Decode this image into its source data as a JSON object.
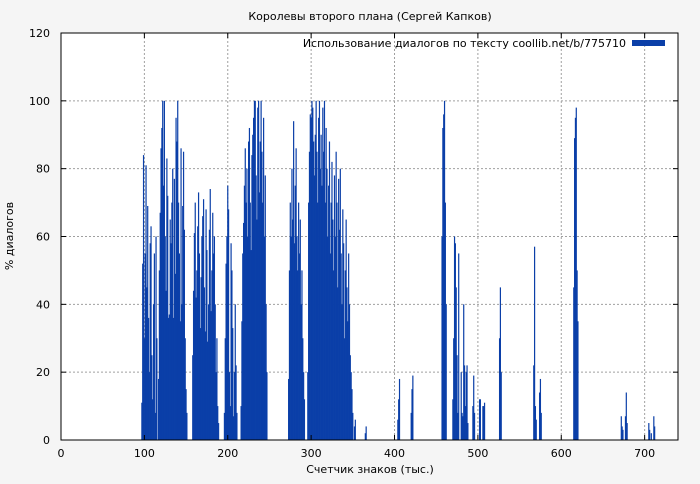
{
  "chart_data": {
    "type": "bar",
    "title": "Королевы второго плана (Сергей Капков)",
    "xlabel": "Счетчик знаков (тыс.)",
    "ylabel": "% диалогов",
    "xlim": [
      0,
      740
    ],
    "ylim": [
      0,
      120
    ],
    "xticks": [
      0,
      100,
      200,
      300,
      400,
      500,
      600,
      700
    ],
    "yticks": [
      0,
      20,
      40,
      60,
      80,
      100,
      120
    ],
    "grid": true,
    "legend_position": "top-right",
    "bar_color": "#0b3fa8",
    "series": [
      {
        "name": "Использование диалогов по тексту coollib.net/b/775710",
        "points": [
          [
            97,
            11
          ],
          [
            98,
            52
          ],
          [
            99,
            84
          ],
          [
            100,
            30
          ],
          [
            101,
            55
          ],
          [
            102,
            81
          ],
          [
            103,
            45
          ],
          [
            104,
            69
          ],
          [
            105,
            36
          ],
          [
            106,
            20
          ],
          [
            107,
            58
          ],
          [
            108,
            63
          ],
          [
            109,
            25
          ],
          [
            110,
            12
          ],
          [
            111,
            40
          ],
          [
            112,
            55
          ],
          [
            113,
            8
          ],
          [
            114,
            60
          ],
          [
            115,
            30
          ],
          [
            117,
            18
          ],
          [
            118,
            50
          ],
          [
            119,
            67
          ],
          [
            120,
            86
          ],
          [
            121,
            92
          ],
          [
            122,
            100
          ],
          [
            123,
            75
          ],
          [
            124,
            100
          ],
          [
            125,
            60
          ],
          [
            126,
            44
          ],
          [
            127,
            83
          ],
          [
            128,
            72
          ],
          [
            129,
            36
          ],
          [
            130,
            37
          ],
          [
            131,
            65
          ],
          [
            132,
            58
          ],
          [
            133,
            70
          ],
          [
            134,
            80
          ],
          [
            135,
            36
          ],
          [
            136,
            77
          ],
          [
            137,
            49
          ],
          [
            138,
            95
          ],
          [
            139,
            88
          ],
          [
            140,
            100
          ],
          [
            141,
            70
          ],
          [
            142,
            55
          ],
          [
            143,
            35
          ],
          [
            144,
            86
          ],
          [
            145,
            40
          ],
          [
            146,
            69
          ],
          [
            147,
            85
          ],
          [
            148,
            62
          ],
          [
            149,
            30
          ],
          [
            150,
            15
          ],
          [
            151,
            8
          ],
          [
            158,
            25
          ],
          [
            159,
            44
          ],
          [
            160,
            61
          ],
          [
            161,
            70
          ],
          [
            162,
            42
          ],
          [
            163,
            50
          ],
          [
            164,
            63
          ],
          [
            165,
            73
          ],
          [
            166,
            55
          ],
          [
            167,
            33
          ],
          [
            168,
            48
          ],
          [
            169,
            60
          ],
          [
            170,
            66
          ],
          [
            171,
            71
          ],
          [
            172,
            45
          ],
          [
            173,
            32
          ],
          [
            174,
            68
          ],
          [
            175,
            56
          ],
          [
            176,
            29
          ],
          [
            177,
            40
          ],
          [
            178,
            62
          ],
          [
            179,
            74
          ],
          [
            180,
            38
          ],
          [
            181,
            50
          ],
          [
            182,
            67
          ],
          [
            183,
            55
          ],
          [
            184,
            60
          ],
          [
            185,
            40
          ],
          [
            186,
            20
          ],
          [
            187,
            30
          ],
          [
            188,
            10
          ],
          [
            189,
            5
          ],
          [
            196,
            8
          ],
          [
            197,
            30
          ],
          [
            198,
            52
          ],
          [
            199,
            60
          ],
          [
            200,
            75
          ],
          [
            201,
            68
          ],
          [
            202,
            20
          ],
          [
            203,
            10
          ],
          [
            204,
            58
          ],
          [
            205,
            50
          ],
          [
            206,
            33
          ],
          [
            207,
            7
          ],
          [
            208,
            20
          ],
          [
            209,
            40
          ],
          [
            210,
            22
          ],
          [
            211,
            8
          ],
          [
            216,
            10
          ],
          [
            217,
            35
          ],
          [
            218,
            55
          ],
          [
            219,
            64
          ],
          [
            220,
            75
          ],
          [
            221,
            86
          ],
          [
            222,
            70
          ],
          [
            223,
            80
          ],
          [
            224,
            60
          ],
          [
            225,
            88
          ],
          [
            226,
            92
          ],
          [
            227,
            70
          ],
          [
            228,
            56
          ],
          [
            229,
            84
          ],
          [
            230,
            90
          ],
          [
            231,
            95
          ],
          [
            232,
            100
          ],
          [
            233,
            100
          ],
          [
            234,
            78
          ],
          [
            235,
            65
          ],
          [
            236,
            98
          ],
          [
            237,
            100
          ],
          [
            238,
            73
          ],
          [
            239,
            88
          ],
          [
            240,
            100
          ],
          [
            241,
            85
          ],
          [
            242,
            70
          ],
          [
            243,
            95
          ],
          [
            244,
            60
          ],
          [
            245,
            78
          ],
          [
            246,
            40
          ],
          [
            247,
            20
          ],
          [
            273,
            18
          ],
          [
            274,
            50
          ],
          [
            275,
            70
          ],
          [
            276,
            60
          ],
          [
            277,
            80
          ],
          [
            278,
            65
          ],
          [
            279,
            94
          ],
          [
            280,
            58
          ],
          [
            281,
            75
          ],
          [
            282,
            86
          ],
          [
            283,
            60
          ],
          [
            284,
            50
          ],
          [
            285,
            70
          ],
          [
            286,
            55
          ],
          [
            287,
            65
          ],
          [
            288,
            40
          ],
          [
            289,
            50
          ],
          [
            290,
            30
          ],
          [
            291,
            20
          ],
          [
            292,
            12
          ],
          [
            296,
            20
          ],
          [
            297,
            70
          ],
          [
            298,
            85
          ],
          [
            299,
            96
          ],
          [
            300,
            95
          ],
          [
            301,
            100
          ],
          [
            302,
            98
          ],
          [
            303,
            88
          ],
          [
            304,
            78
          ],
          [
            305,
            90
          ],
          [
            306,
            100
          ],
          [
            307,
            85
          ],
          [
            308,
            70
          ],
          [
            309,
            95
          ],
          [
            310,
            100
          ],
          [
            311,
            80
          ],
          [
            312,
            90
          ],
          [
            313,
            75
          ],
          [
            314,
            98
          ],
          [
            315,
            85
          ],
          [
            316,
            100
          ],
          [
            317,
            70
          ],
          [
            318,
            92
          ],
          [
            319,
            80
          ],
          [
            320,
            60
          ],
          [
            321,
            75
          ],
          [
            322,
            88
          ],
          [
            323,
            55
          ],
          [
            324,
            70
          ],
          [
            325,
            82
          ],
          [
            326,
            65
          ],
          [
            327,
            50
          ],
          [
            328,
            78
          ],
          [
            329,
            60
          ],
          [
            330,
            85
          ],
          [
            331,
            70
          ],
          [
            332,
            45
          ],
          [
            333,
            77
          ],
          [
            334,
            62
          ],
          [
            335,
            80
          ],
          [
            336,
            55
          ],
          [
            337,
            40
          ],
          [
            338,
            68
          ],
          [
            339,
            58
          ],
          [
            340,
            30
          ],
          [
            341,
            50
          ],
          [
            342,
            65
          ],
          [
            343,
            45
          ],
          [
            344,
            35
          ],
          [
            345,
            55
          ],
          [
            346,
            40
          ],
          [
            347,
            25
          ],
          [
            348,
            20
          ],
          [
            349,
            15
          ],
          [
            350,
            8
          ],
          [
            352,
            4
          ],
          [
            353,
            6
          ],
          [
            365,
            2
          ],
          [
            366,
            4
          ],
          [
            404,
            6
          ],
          [
            405,
            12
          ],
          [
            406,
            18
          ],
          [
            420,
            8
          ],
          [
            421,
            15
          ],
          [
            422,
            19
          ],
          [
            457,
            60
          ],
          [
            458,
            92
          ],
          [
            459,
            96
          ],
          [
            460,
            100
          ],
          [
            461,
            70
          ],
          [
            462,
            40
          ],
          [
            470,
            12
          ],
          [
            471,
            30
          ],
          [
            472,
            60
          ],
          [
            473,
            58
          ],
          [
            474,
            45
          ],
          [
            475,
            25
          ],
          [
            476,
            8
          ],
          [
            477,
            55
          ],
          [
            480,
            20
          ],
          [
            481,
            8
          ],
          [
            482,
            7
          ],
          [
            483,
            40
          ],
          [
            484,
            22
          ],
          [
            485,
            10
          ],
          [
            486,
            20
          ],
          [
            487,
            22
          ],
          [
            488,
            5
          ],
          [
            494,
            10
          ],
          [
            495,
            19
          ],
          [
            496,
            8
          ],
          [
            502,
            12
          ],
          [
            503,
            12
          ],
          [
            506,
            10
          ],
          [
            507,
            10
          ],
          [
            508,
            11
          ],
          [
            526,
            30
          ],
          [
            527,
            45
          ],
          [
            528,
            20
          ],
          [
            567,
            22
          ],
          [
            568,
            57
          ],
          [
            569,
            10
          ],
          [
            570,
            6
          ],
          [
            574,
            14
          ],
          [
            575,
            18
          ],
          [
            576,
            8
          ],
          [
            615,
            45
          ],
          [
            616,
            89
          ],
          [
            617,
            95
          ],
          [
            618,
            98
          ],
          [
            619,
            50
          ],
          [
            620,
            35
          ],
          [
            672,
            7
          ],
          [
            673,
            4
          ],
          [
            674,
            3
          ],
          [
            677,
            7
          ],
          [
            678,
            14
          ],
          [
            679,
            5
          ],
          [
            705,
            5
          ],
          [
            706,
            3
          ],
          [
            708,
            2
          ],
          [
            711,
            7
          ],
          [
            712,
            4
          ]
        ]
      }
    ]
  }
}
